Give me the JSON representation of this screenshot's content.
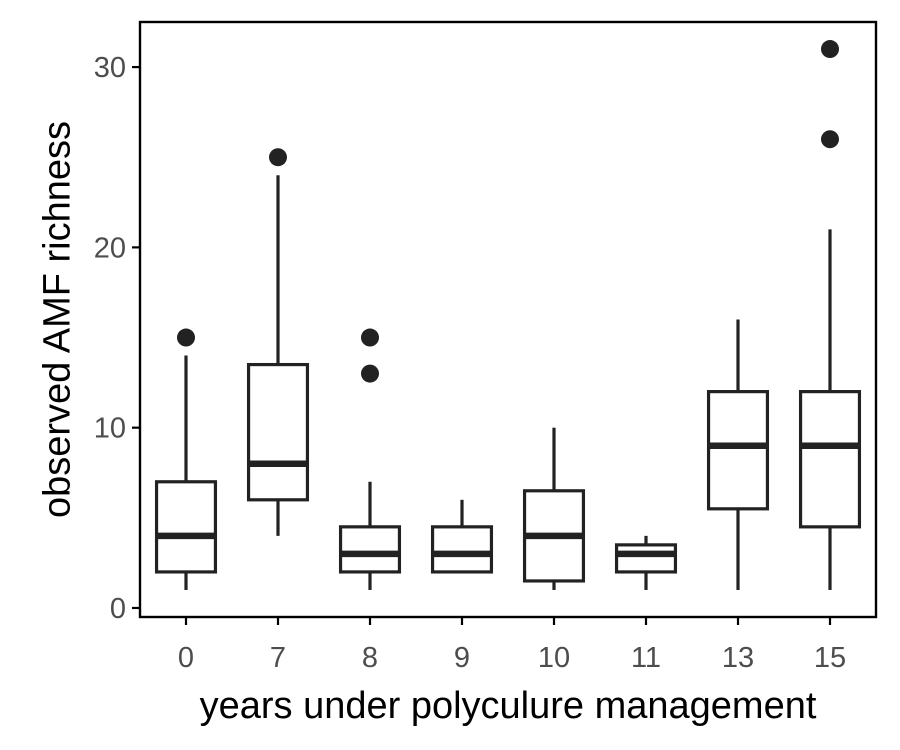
{
  "chart_data": {
    "type": "boxplot",
    "title": "",
    "xlabel": "years under polyculure management",
    "ylabel": "observed AMF richness",
    "categories": [
      "0",
      "7",
      "8",
      "9",
      "10",
      "11",
      "13",
      "15"
    ],
    "yticks": [
      0,
      10,
      20,
      30
    ],
    "ylim": [
      -0.5,
      32.5
    ],
    "grid": false,
    "legend": "none",
    "colors": {
      "box_stroke": "#222222",
      "box_fill": "#ffffff",
      "axis": "#000000",
      "outlier": "#222222"
    },
    "boxes": [
      {
        "category": "0",
        "whisker_low": 1,
        "q1": 2,
        "median": 4,
        "q3": 7,
        "whisker_high": 14,
        "outliers": [
          15
        ]
      },
      {
        "category": "7",
        "whisker_low": 4,
        "q1": 6,
        "median": 8,
        "q3": 13.5,
        "whisker_high": 24,
        "outliers": [
          25
        ]
      },
      {
        "category": "8",
        "whisker_low": 1,
        "q1": 2,
        "median": 3,
        "q3": 4.5,
        "whisker_high": 7,
        "outliers": [
          13,
          15
        ]
      },
      {
        "category": "9",
        "whisker_low": 2,
        "q1": 2,
        "median": 3,
        "q3": 4.5,
        "whisker_high": 6,
        "outliers": []
      },
      {
        "category": "10",
        "whisker_low": 1,
        "q1": 1.5,
        "median": 4,
        "q3": 6.5,
        "whisker_high": 10,
        "outliers": []
      },
      {
        "category": "11",
        "whisker_low": 1,
        "q1": 2,
        "median": 3,
        "q3": 3.5,
        "whisker_high": 4,
        "outliers": []
      },
      {
        "category": "13",
        "whisker_low": 1,
        "q1": 5.5,
        "median": 9,
        "q3": 12,
        "whisker_high": 16,
        "outliers": []
      },
      {
        "category": "15",
        "whisker_low": 1,
        "q1": 4.5,
        "median": 9,
        "q3": 12,
        "whisker_high": 21,
        "outliers": [
          26,
          31
        ]
      }
    ]
  }
}
